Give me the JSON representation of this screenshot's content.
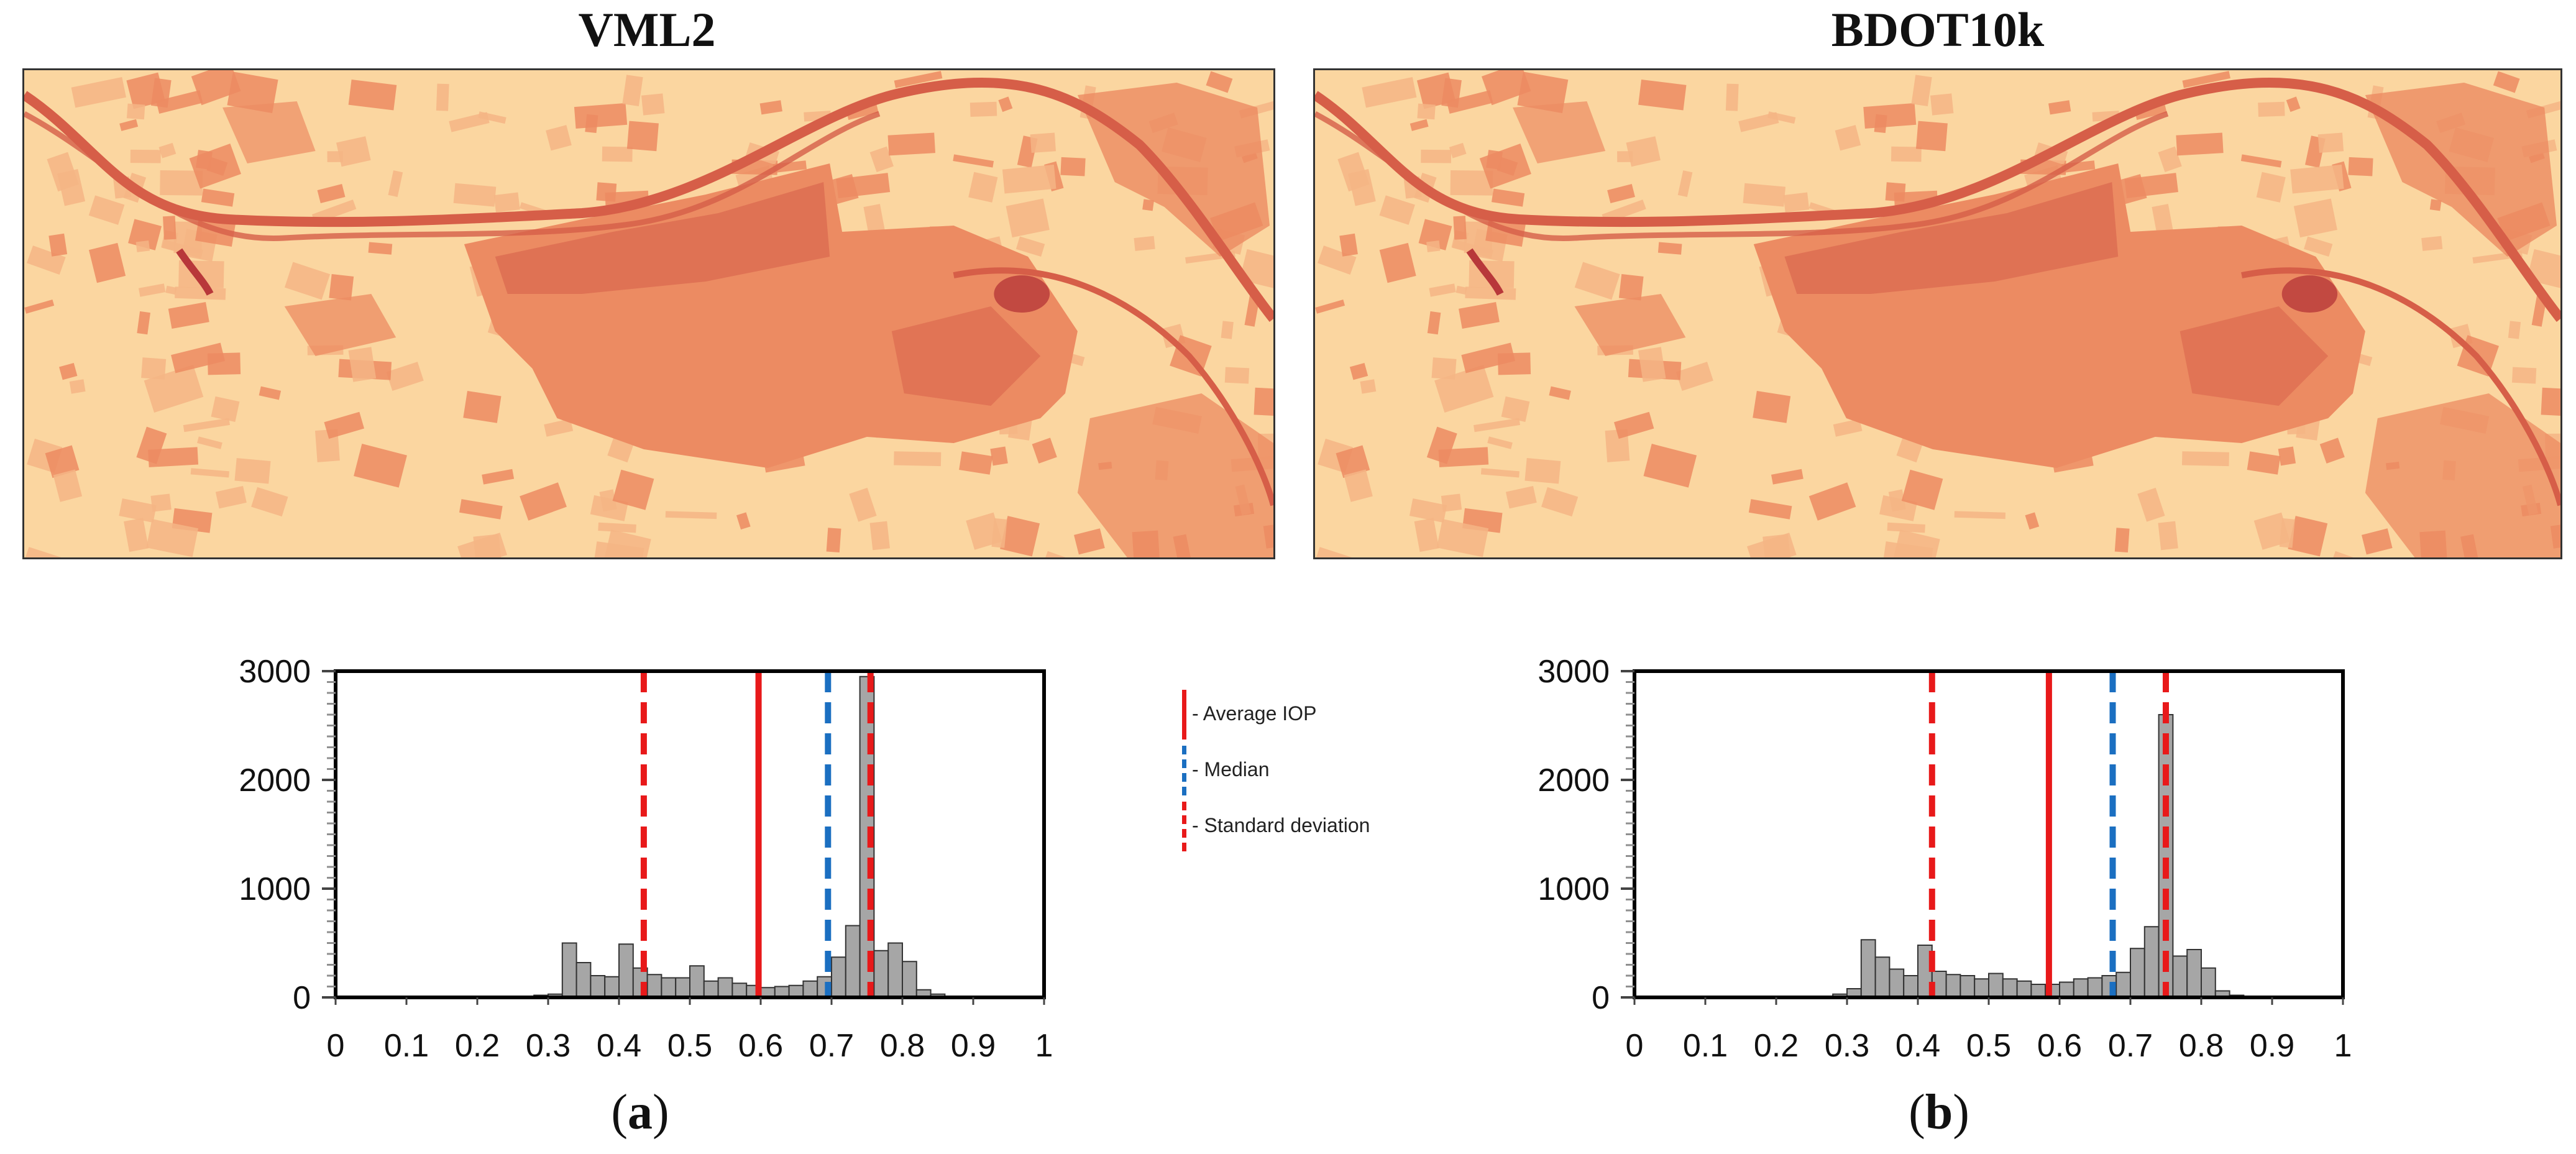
{
  "panels": [
    {
      "title": "VML2",
      "caption_letter": "a"
    },
    {
      "title": "BDOT10k",
      "caption_letter": "b"
    }
  ],
  "legend": {
    "items": [
      {
        "label": "- Average IOP",
        "style": "solid",
        "color": "#e8191a"
      },
      {
        "label": "- Median",
        "style": "dashed",
        "color": "#1b6fc1"
      },
      {
        "label": "- Standard deviation",
        "style": "dashed",
        "color": "#e8191a"
      }
    ]
  },
  "colors": {
    "bar_fill": "#a6a6a6",
    "bar_stroke": "#333333",
    "average": "#e8191a",
    "median": "#1b6fc1",
    "std": "#e8191a",
    "map_background": "#fbd6a0",
    "map_light": "#f5b585",
    "map_mid": "#ec8b62",
    "map_dark": "#d65e48"
  },
  "chart_data": [
    {
      "type": "bar",
      "title": "VML2",
      "xlim": [
        0,
        1
      ],
      "ylim": [
        0,
        3000
      ],
      "xticks": [
        "0",
        "0.1",
        "0.2",
        "0.3",
        "0.4",
        "0.5",
        "0.6",
        "0.7",
        "0.8",
        "0.9",
        "1"
      ],
      "yticks": [
        "0",
        "1000",
        "2000",
        "3000"
      ],
      "bin_width": 0.02,
      "bin_start": 0.0,
      "values": [
        5,
        5,
        5,
        5,
        5,
        5,
        10,
        5,
        5,
        5,
        5,
        5,
        5,
        5,
        20,
        30,
        500,
        320,
        200,
        190,
        490,
        270,
        210,
        180,
        180,
        290,
        150,
        180,
        130,
        110,
        90,
        100,
        110,
        150,
        190,
        370,
        660,
        2950,
        430,
        500,
        330,
        70,
        30,
        10,
        5,
        5,
        5,
        5,
        5,
        5
      ],
      "average": 0.597,
      "median": 0.695,
      "std_lines": [
        0.435,
        0.755
      ]
    },
    {
      "type": "bar",
      "title": "BDOT10k",
      "xlim": [
        0,
        1
      ],
      "ylim": [
        0,
        3000
      ],
      "xticks": [
        "0",
        "0.1",
        "0.2",
        "0.3",
        "0.4",
        "0.5",
        "0.6",
        "0.7",
        "0.8",
        "0.9",
        "1"
      ],
      "yticks": [
        "0",
        "1000",
        "2000",
        "3000"
      ],
      "bin_width": 0.02,
      "bin_start": 0.0,
      "values": [
        5,
        5,
        5,
        5,
        5,
        5,
        5,
        5,
        5,
        5,
        5,
        5,
        5,
        5,
        30,
        80,
        530,
        370,
        260,
        200,
        480,
        240,
        210,
        200,
        170,
        220,
        170,
        150,
        120,
        120,
        140,
        170,
        180,
        200,
        230,
        450,
        650,
        2600,
        380,
        440,
        270,
        60,
        20,
        5,
        5,
        5,
        5,
        5,
        5,
        5
      ],
      "average": 0.585,
      "median": 0.675,
      "std_lines": [
        0.42,
        0.75
      ]
    }
  ]
}
